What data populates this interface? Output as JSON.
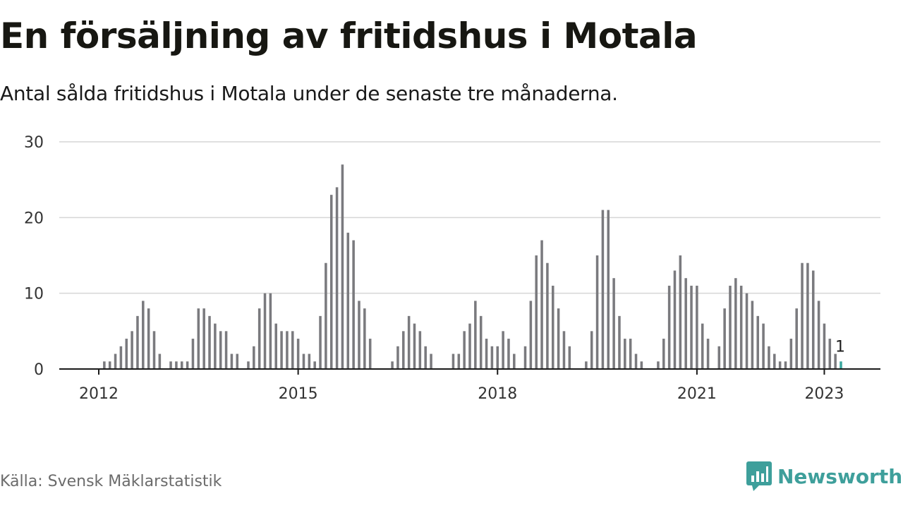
{
  "title": "En försäljning av fritidshus i Motala",
  "subtitle": "Antal sålda fritidshus i Motala under de senaste tre månaderna.",
  "source": "Källa: Svensk Mäklarstatistik",
  "brand": "Newsworthy",
  "colors": {
    "bar": "#7a7a7e",
    "highlight": "#3aa79f",
    "grid": "#d6d6d6",
    "axis": "#1a1a1a",
    "brand": "#3e9f9b"
  },
  "chart_data": {
    "type": "bar",
    "title": "En försäljning av fritidshus i Motala",
    "subtitle": "Antal sålda fritidshus i Motala under de senaste tre månaderna.",
    "xlabel": "",
    "ylabel": "",
    "ylim": [
      0,
      30
    ],
    "yticks": [
      0,
      10,
      20,
      30
    ],
    "xticks": [
      "2012",
      "2015",
      "2018",
      "2021",
      "2023"
    ],
    "grid": true,
    "highlight_label": "1",
    "series": [
      {
        "values": [
          0,
          1,
          1,
          2,
          3,
          4,
          5,
          7,
          9,
          8,
          5,
          2,
          0,
          1,
          1,
          1,
          1,
          4,
          8,
          8,
          7,
          6,
          5,
          5,
          2,
          2,
          0,
          1,
          3,
          8,
          10,
          10,
          6,
          5,
          5,
          5,
          4,
          2,
          2,
          1,
          7,
          14,
          23,
          24,
          27,
          18,
          17,
          9,
          8,
          4,
          0,
          0,
          0,
          1,
          3,
          5,
          7,
          6,
          5,
          3,
          2,
          0,
          0,
          0,
          2,
          2,
          5,
          6,
          9,
          7,
          4,
          3,
          3,
          5,
          4,
          2,
          0,
          3,
          9,
          15,
          17,
          14,
          11,
          8,
          5,
          3,
          0,
          0,
          1,
          5,
          15,
          21,
          21,
          12,
          7,
          4,
          4,
          2,
          1,
          0,
          0,
          1,
          4,
          11,
          13,
          15,
          12,
          11,
          11,
          6,
          4,
          0,
          3,
          8,
          11,
          12,
          11,
          10,
          9,
          7,
          6,
          3,
          2,
          1,
          1,
          4,
          8,
          14,
          14,
          13,
          9,
          6,
          4,
          2,
          1
        ]
      }
    ]
  }
}
